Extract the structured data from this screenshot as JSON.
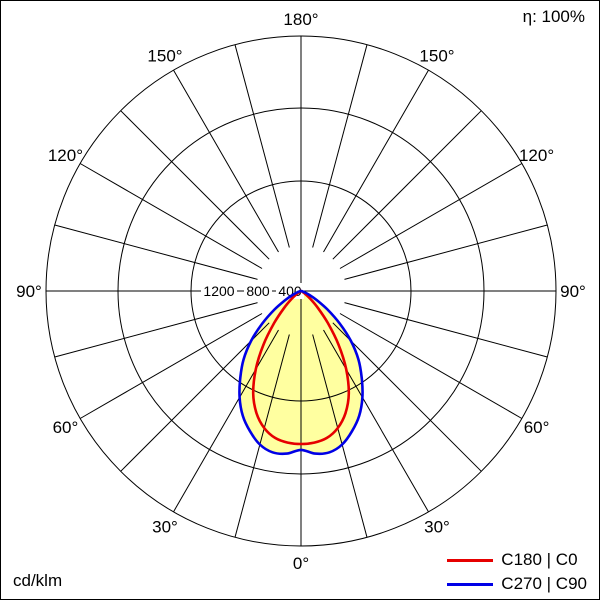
{
  "header": {
    "efficiency": "η: 100%"
  },
  "footer": {
    "unit": "cd/klm"
  },
  "legend": {
    "items": [
      {
        "label": "C180 | C0",
        "color": "#e60000"
      },
      {
        "label": "C270 | C90",
        "color": "#0000e6"
      }
    ]
  },
  "chart_data": {
    "type": "polar",
    "variant": "luminous-intensity-distribution",
    "title": "",
    "unit": "cd/klm",
    "efficiency_label": "η: 100%",
    "angle_ticks_deg": [
      0,
      30,
      60,
      90,
      120,
      150,
      180
    ],
    "angle_tick_labels": [
      "0°",
      "30°",
      "60°",
      "90°",
      "120°",
      "150°",
      "180°"
    ],
    "grid_step_deg": 15,
    "radial_ticks": [
      1200,
      800,
      400
    ],
    "radial_tick_labels": [
      "1200",
      "800",
      "400"
    ],
    "radial_max": 1200,
    "grid": true,
    "legend_position": "bottom-right",
    "gamma_deg": [
      0,
      5,
      10,
      15,
      20,
      25,
      30,
      35,
      40,
      45,
      50,
      55,
      60,
      65,
      70,
      75,
      80,
      85,
      90
    ],
    "series": [
      {
        "name": "C180 | C0",
        "color": "#e60000",
        "values": [
          720,
          716,
          702,
          668,
          612,
          532,
          425,
          308,
          196,
          112,
          58,
          26,
          10,
          4,
          2,
          1,
          0,
          0,
          0
        ]
      },
      {
        "name": "C270 | C90",
        "color": "#0000e6",
        "values": [
          748,
          768,
          771,
          748,
          702,
          648,
          578,
          498,
          420,
          332,
          238,
          152,
          86,
          44,
          20,
          8,
          3,
          1,
          0
        ]
      }
    ],
    "fill_color": "#ffffa0"
  }
}
